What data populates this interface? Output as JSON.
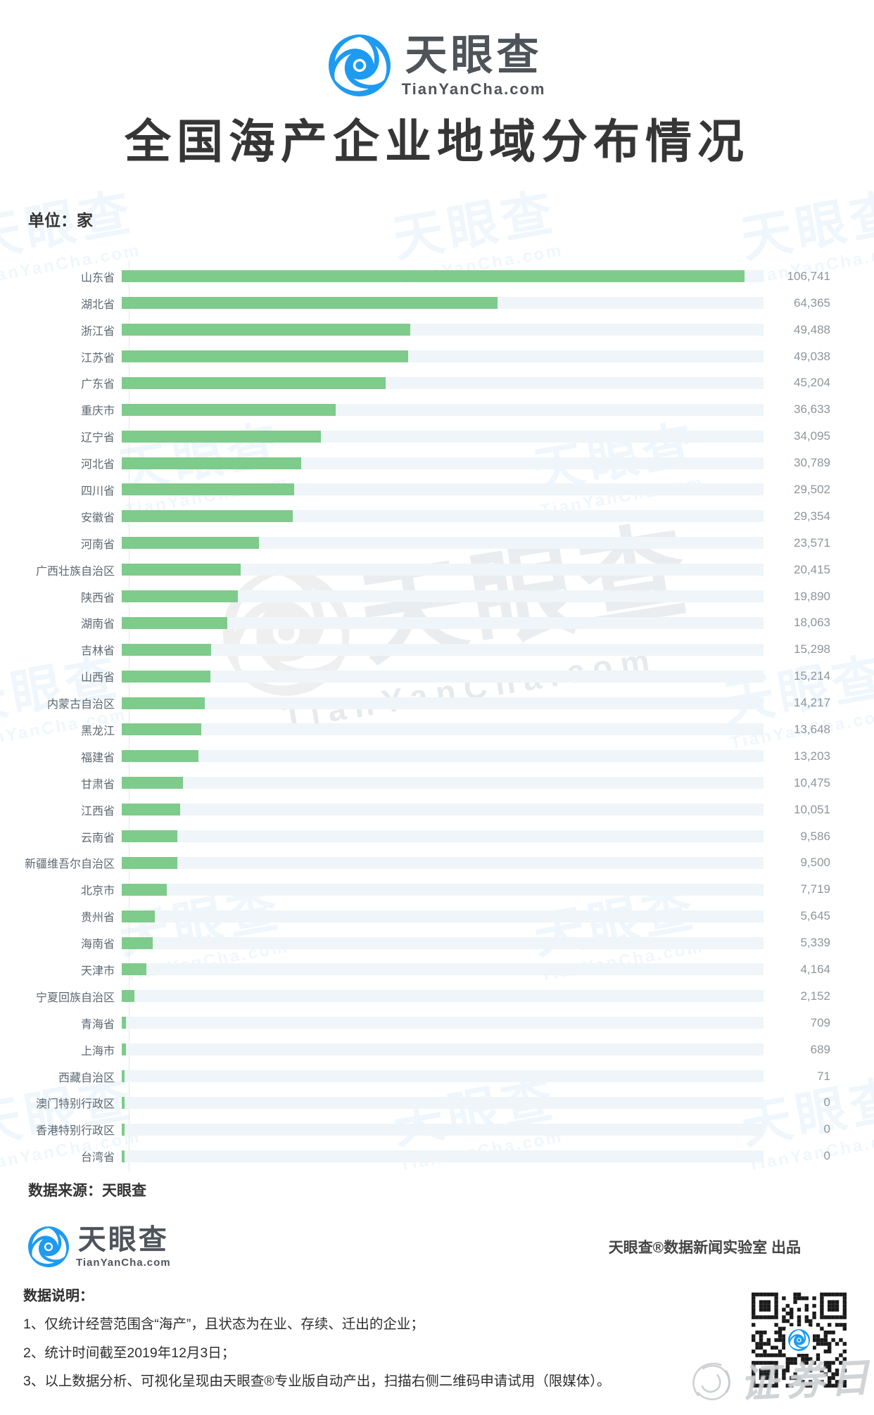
{
  "brand": {
    "name_cn": "天眼查",
    "domain": "TianYanCha.com",
    "blue": "#1e9bf0"
  },
  "header": {
    "title": "全国海产企业地域分布情况",
    "unit_label": "单位：家"
  },
  "chart_data": {
    "type": "bar",
    "orientation": "horizontal",
    "title": "全国海产企业地域分布情况",
    "unit": "家",
    "xlim": [
      0,
      106741
    ],
    "bar_color": "#7ecb8b",
    "track_color": "#eff5f8",
    "grid": false,
    "legend": "none",
    "categories": [
      "山东省",
      "湖北省",
      "浙江省",
      "江苏省",
      "广东省",
      "重庆市",
      "辽宁省",
      "河北省",
      "四川省",
      "安徽省",
      "河南省",
      "广西壮族自治区",
      "陕西省",
      "湖南省",
      "吉林省",
      "山西省",
      "内蒙古自治区",
      "黑龙江",
      "福建省",
      "甘肃省",
      "江西省",
      "云南省",
      "新疆维吾尔自治区",
      "北京市",
      "贵州省",
      "海南省",
      "天津市",
      "宁夏回族自治区",
      "青海省",
      "上海市",
      "西藏自治区",
      "澳门特别行政区",
      "香港特别行政区",
      "台湾省"
    ],
    "values": [
      106741,
      64365,
      49488,
      49038,
      45204,
      36633,
      34095,
      30789,
      29502,
      29354,
      23571,
      20415,
      19890,
      18063,
      15298,
      15214,
      14217,
      13648,
      13203,
      10475,
      10051,
      9586,
      9500,
      7719,
      5645,
      5339,
      4164,
      2152,
      709,
      689,
      71,
      0,
      0,
      0
    ],
    "values_formatted": [
      "106,741",
      "64,365",
      "49,488",
      "49,038",
      "45,204",
      "36,633",
      "34,095",
      "30,789",
      "29,502",
      "29,354",
      "23,571",
      "20,415",
      "19,890",
      "18,063",
      "15,298",
      "15,214",
      "14,217",
      "13,648",
      "13,203",
      "10,475",
      "10,051",
      "9,586",
      "9,500",
      "7,719",
      "5,645",
      "5,339",
      "4,164",
      "2,152",
      "709",
      "689",
      "71",
      "0",
      "0",
      "0"
    ]
  },
  "footer": {
    "source": "数据来源：天眼查",
    "producer": "天眼查®数据新闻实验室 出品",
    "notes_title": "数据说明：",
    "notes": [
      "1、仅统计经营范围含“海产”，且状态为在业、存续、迁出的企业；",
      "2、统计时间截至2019年12月3日；",
      "3、以上数据分析、可视化呈现由天眼查®专业版自动产出，扫描右侧二维码申请试用（限媒体）。"
    ],
    "stamp": "证券日报"
  }
}
